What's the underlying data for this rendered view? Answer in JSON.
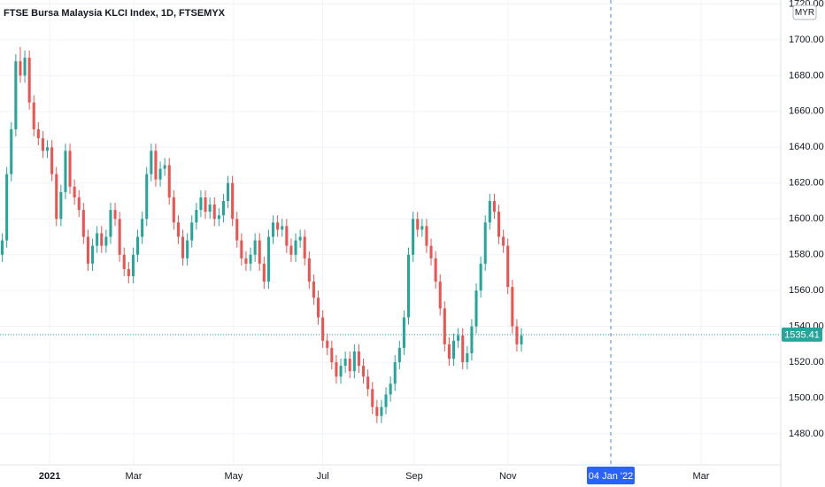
{
  "chart_data": {
    "type": "candlestick",
    "title": "FTSE Bursa Malaysia KLCI Index, 1D, FTSEMYX",
    "currency": "MYR",
    "up_color": "#26a69a",
    "down_color": "#ef5350",
    "grid": true,
    "xlim": [
      0,
      345.9
    ],
    "ylim": [
      1462.7,
      1722.2
    ],
    "xticks": [
      {
        "value": 22,
        "label": "2021"
      },
      {
        "value": 59.2,
        "label": "Mar"
      },
      {
        "value": 103.5,
        "label": "May"
      },
      {
        "value": 143,
        "label": "Jul"
      },
      {
        "value": 183.5,
        "label": "Sep"
      },
      {
        "value": 225,
        "label": "Nov"
      },
      {
        "value": 310.6,
        "label": "Mar"
      }
    ],
    "yticks": [
      {
        "value": 1480,
        "label": "1480.00"
      },
      {
        "value": 1500,
        "label": "1500.00"
      },
      {
        "value": 1520,
        "label": "1520.00"
      },
      {
        "value": 1540,
        "label": "1540.00"
      },
      {
        "value": 1560,
        "label": "1560.00"
      },
      {
        "value": 1580,
        "label": "1580.00"
      },
      {
        "value": 1600,
        "label": "1600.00"
      },
      {
        "value": 1620,
        "label": "1620.00"
      },
      {
        "value": 1640,
        "label": "1640.00"
      },
      {
        "value": 1660,
        "label": "1660.00"
      },
      {
        "value": 1680,
        "label": "1680.00"
      },
      {
        "value": 1700,
        "label": "1700.00"
      },
      {
        "value": 1720,
        "label": "1720.00"
      }
    ],
    "last_price": 1535.41,
    "crosshair": {
      "value": 270.6,
      "label": "04 Jan '22"
    },
    "x": [
      1,
      3,
      5,
      7,
      9,
      11,
      13,
      15,
      17,
      19,
      21,
      23,
      25,
      27,
      29,
      31,
      33,
      35,
      37,
      39,
      41,
      43,
      45,
      47,
      49,
      51,
      53,
      55,
      57,
      59,
      61,
      63,
      65,
      67,
      69,
      71,
      73,
      75,
      77,
      79,
      81,
      83,
      85,
      87,
      89,
      91,
      93,
      95,
      97,
      99,
      101,
      103,
      105,
      107,
      109,
      111,
      113,
      115,
      117,
      119,
      121,
      123,
      125,
      127,
      129,
      131,
      133,
      135,
      137,
      139,
      141,
      143,
      145,
      147,
      149,
      151,
      153,
      155,
      157,
      159,
      161,
      163,
      165,
      167,
      169,
      171,
      173,
      175,
      177,
      179,
      181,
      183,
      185,
      187,
      189,
      191,
      193,
      195,
      197,
      199,
      201,
      203,
      205,
      207,
      209,
      211,
      213,
      215,
      217,
      219,
      221,
      223,
      225,
      227,
      229,
      231
    ],
    "open": [
      1580,
      1588,
      1625,
      1650,
      1688,
      1680,
      1690,
      1665,
      1650,
      1645,
      1638,
      1640,
      1625,
      1600,
      1615,
      1638,
      1618,
      1612,
      1605,
      1590,
      1575,
      1585,
      1592,
      1585,
      1590,
      1605,
      1600,
      1580,
      1572,
      1568,
      1580,
      1590,
      1600,
      1625,
      1638,
      1622,
      1628,
      1630,
      1612,
      1598,
      1590,
      1578,
      1588,
      1598,
      1605,
      1612,
      1604,
      1608,
      1600,
      1602,
      1610,
      1620,
      1600,
      1588,
      1578,
      1575,
      1580,
      1588,
      1575,
      1565,
      1590,
      1598,
      1594,
      1596,
      1585,
      1580,
      1588,
      1590,
      1578,
      1565,
      1556,
      1545,
      1532,
      1528,
      1520,
      1512,
      1518,
      1522,
      1515,
      1526,
      1518,
      1512,
      1505,
      1495,
      1490,
      1495,
      1502,
      1508,
      1520,
      1528,
      1545,
      1580,
      1600,
      1594,
      1596,
      1585,
      1578,
      1565,
      1550,
      1530,
      1522,
      1532,
      1535,
      1520,
      1525,
      1540,
      1560,
      1575,
      1598,
      1610,
      1604,
      1590,
      1585,
      1562,
      1540,
      1530
    ],
    "high": [
      1592,
      1629,
      1654,
      1692,
      1696,
      1694,
      1694,
      1669,
      1654,
      1649,
      1644,
      1644,
      1629,
      1619,
      1642,
      1642,
      1622,
      1616,
      1609,
      1594,
      1589,
      1596,
      1596,
      1594,
      1609,
      1609,
      1604,
      1584,
      1576,
      1584,
      1594,
      1604,
      1629,
      1642,
      1642,
      1632,
      1634,
      1634,
      1616,
      1602,
      1594,
      1592,
      1602,
      1609,
      1616,
      1616,
      1612,
      1612,
      1606,
      1614,
      1624,
      1624,
      1604,
      1592,
      1582,
      1584,
      1592,
      1592,
      1579,
      1594,
      1602,
      1602,
      1600,
      1600,
      1589,
      1592,
      1594,
      1594,
      1582,
      1569,
      1560,
      1549,
      1536,
      1532,
      1524,
      1522,
      1526,
      1526,
      1530,
      1530,
      1522,
      1516,
      1509,
      1499,
      1499,
      1506,
      1512,
      1524,
      1532,
      1549,
      1584,
      1604,
      1604,
      1600,
      1600,
      1589,
      1582,
      1569,
      1554,
      1534,
      1536,
      1539,
      1539,
      1529,
      1544,
      1564,
      1579,
      1602,
      1614,
      1614,
      1608,
      1594,
      1589,
      1566,
      1544,
      1539
    ],
    "low": [
      1576,
      1584,
      1621,
      1646,
      1676,
      1676,
      1661,
      1646,
      1641,
      1634,
      1634,
      1621,
      1596,
      1596,
      1611,
      1614,
      1608,
      1601,
      1586,
      1571,
      1571,
      1581,
      1581,
      1581,
      1586,
      1596,
      1576,
      1568,
      1564,
      1564,
      1576,
      1586,
      1596,
      1621,
      1618,
      1618,
      1624,
      1608,
      1594,
      1586,
      1574,
      1574,
      1584,
      1594,
      1601,
      1600,
      1600,
      1596,
      1596,
      1598,
      1606,
      1596,
      1584,
      1574,
      1571,
      1571,
      1576,
      1571,
      1561,
      1561,
      1586,
      1590,
      1590,
      1581,
      1576,
      1576,
      1584,
      1574,
      1561,
      1552,
      1541,
      1528,
      1524,
      1516,
      1508,
      1508,
      1514,
      1511,
      1511,
      1514,
      1508,
      1501,
      1491,
      1486,
      1486,
      1491,
      1498,
      1504,
      1516,
      1524,
      1541,
      1576,
      1590,
      1590,
      1581,
      1574,
      1561,
      1546,
      1526,
      1518,
      1518,
      1528,
      1516,
      1516,
      1521,
      1536,
      1556,
      1571,
      1594,
      1600,
      1586,
      1581,
      1558,
      1536,
      1526,
      1526
    ],
    "close": [
      1588,
      1625,
      1650,
      1688,
      1680,
      1690,
      1665,
      1650,
      1645,
      1638,
      1640,
      1625,
      1600,
      1615,
      1638,
      1618,
      1612,
      1605,
      1590,
      1575,
      1585,
      1592,
      1585,
      1590,
      1605,
      1600,
      1580,
      1572,
      1568,
      1580,
      1590,
      1600,
      1625,
      1638,
      1622,
      1628,
      1630,
      1612,
      1598,
      1590,
      1578,
      1588,
      1598,
      1605,
      1612,
      1604,
      1608,
      1600,
      1602,
      1610,
      1620,
      1600,
      1588,
      1578,
      1575,
      1580,
      1588,
      1575,
      1565,
      1590,
      1598,
      1594,
      1596,
      1585,
      1580,
      1588,
      1590,
      1578,
      1565,
      1556,
      1545,
      1532,
      1528,
      1520,
      1512,
      1518,
      1522,
      1515,
      1526,
      1518,
      1512,
      1505,
      1495,
      1490,
      1495,
      1502,
      1508,
      1520,
      1528,
      1545,
      1580,
      1600,
      1594,
      1596,
      1585,
      1578,
      1565,
      1550,
      1530,
      1522,
      1532,
      1535,
      1520,
      1525,
      1540,
      1560,
      1575,
      1598,
      1610,
      1604,
      1590,
      1585,
      1562,
      1540,
      1530,
      1535
    ]
  }
}
